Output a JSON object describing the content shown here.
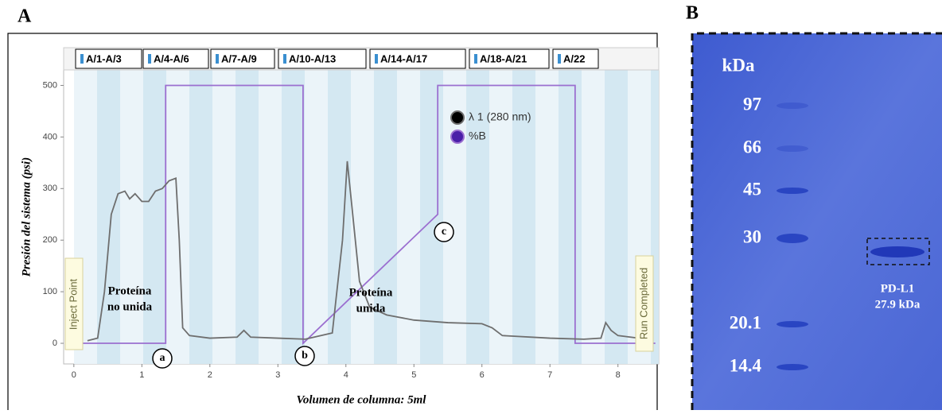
{
  "panel_a": "A",
  "chart_data": {
    "type": "line",
    "x_label": "Volumen de columna: 5ml",
    "y_label": "Presión del sistema (psi)",
    "xlim": [
      -0.15,
      8.6
    ],
    "ylim": [
      -40,
      530
    ],
    "xticks": [
      0,
      1,
      2,
      3,
      4,
      5,
      6,
      7,
      8
    ],
    "yticks": [
      0,
      100,
      200,
      300,
      400,
      500
    ],
    "fractions": [
      "A/1-A/3",
      "A/4-A/6",
      "A/7-A/9",
      "A/10-A/13",
      "A/14-A/17",
      "A/18-A/21",
      "A/22"
    ],
    "series": [
      {
        "name": "λ 1 (280 nm)",
        "color": "#6e6e6e",
        "x": [
          0.2,
          0.35,
          0.45,
          0.55,
          0.65,
          0.75,
          0.82,
          0.9,
          1.0,
          1.1,
          1.2,
          1.3,
          1.4,
          1.5,
          1.55,
          1.6,
          1.7,
          2.0,
          2.4,
          2.5,
          2.6,
          3.0,
          3.4,
          3.8,
          3.95,
          4.02,
          4.1,
          4.2,
          4.35,
          4.6,
          5.0,
          5.5,
          6.0,
          6.15,
          6.3,
          7.0,
          7.5,
          7.75,
          7.82,
          7.9,
          8.0,
          8.3
        ],
        "values": [
          5,
          10,
          100,
          250,
          290,
          295,
          280,
          290,
          275,
          275,
          295,
          300,
          315,
          320,
          200,
          30,
          15,
          10,
          12,
          25,
          12,
          10,
          8,
          20,
          200,
          353,
          250,
          120,
          70,
          55,
          45,
          40,
          38,
          30,
          15,
          10,
          8,
          10,
          40,
          25,
          15,
          10
        ]
      },
      {
        "name": "%B",
        "color": "#9b6fd0",
        "x": [
          0,
          1.35,
          1.35,
          3.37,
          3.37,
          5.35,
          5.35,
          7.37,
          7.37,
          8.55
        ],
        "values": [
          0,
          0,
          500,
          500,
          0,
          250,
          500,
          500,
          0,
          0
        ]
      }
    ],
    "inject_label": "Inject Point",
    "complete_label": "Run Completed",
    "unbound_label": [
      "Proteína",
      "no unida"
    ],
    "bound_label": [
      "Proteína",
      "unida"
    ],
    "markers": [
      "a",
      "b",
      "c"
    ]
  },
  "gel": {
    "panel": "B",
    "unit": "kDa",
    "ladder": [
      "97",
      "66",
      "45",
      "30",
      "20.1",
      "14.4"
    ],
    "band_label": [
      "PD-L1",
      "27.9 kDa"
    ]
  }
}
